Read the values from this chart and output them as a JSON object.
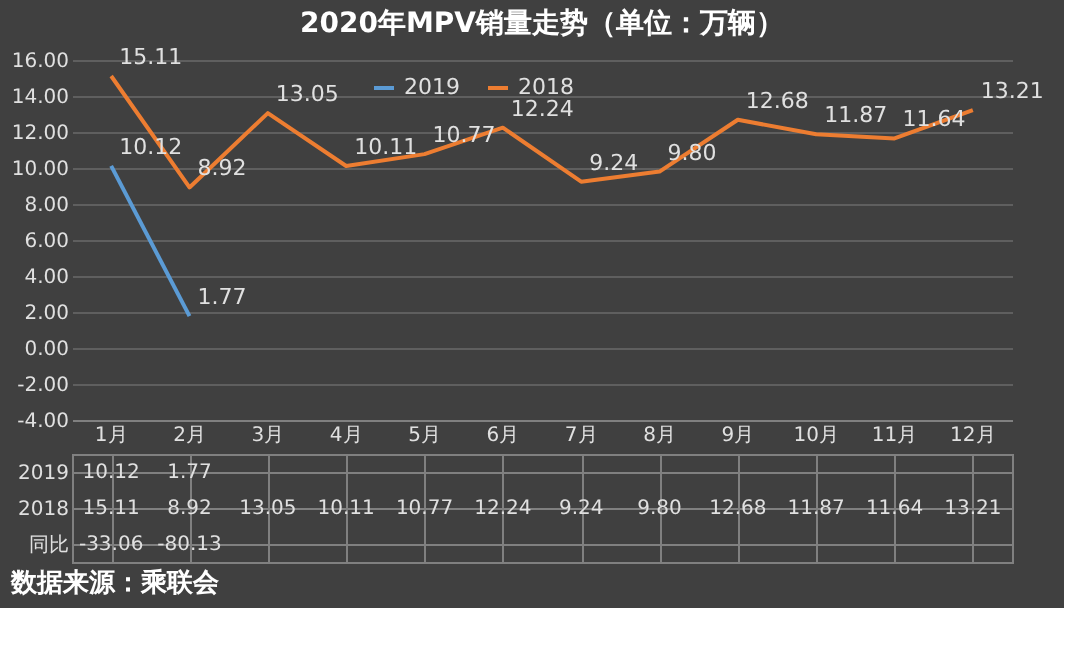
{
  "chart_data": {
    "type": "line",
    "title": "2020年MPV销量走势（单位：万辆）",
    "categories": [
      "1月",
      "2月",
      "3月",
      "4月",
      "5月",
      "6月",
      "7月",
      "8月",
      "9月",
      "10月",
      "11月",
      "12月"
    ],
    "series": [
      {
        "name": "2019",
        "color": "#5b9bd5",
        "values": [
          10.12,
          1.77,
          null,
          null,
          null,
          null,
          null,
          null,
          null,
          null,
          null,
          null
        ],
        "value_labels": [
          "10.12",
          "1.77",
          null,
          null,
          null,
          null,
          null,
          null,
          null,
          null,
          null,
          null
        ]
      },
      {
        "name": "2018",
        "color": "#ed7d31",
        "values": [
          15.11,
          8.92,
          13.05,
          10.11,
          10.77,
          12.24,
          9.24,
          9.8,
          12.68,
          11.87,
          11.64,
          13.21
        ],
        "value_labels": [
          "15.11",
          "8.92",
          "13.05",
          "10.11",
          "10.77",
          "12.24",
          "9.24",
          "9.80",
          "12.68",
          "11.87",
          "11.64",
          "13.21"
        ]
      }
    ],
    "ylim": [
      -4,
      16
    ],
    "yticks": [
      {
        "value": -4,
        "label": "-4.00"
      },
      {
        "value": -2,
        "label": "-2.00"
      },
      {
        "value": 0,
        "label": "0.00"
      },
      {
        "value": 2,
        "label": "2.00"
      },
      {
        "value": 4,
        "label": "4.00"
      },
      {
        "value": 6,
        "label": "6.00"
      },
      {
        "value": 8,
        "label": "8.00"
      },
      {
        "value": 10,
        "label": "10.00"
      },
      {
        "value": 12,
        "label": "12.00"
      },
      {
        "value": 14,
        "label": "14.00"
      },
      {
        "value": 16,
        "label": "16.00"
      }
    ],
    "grid": "y",
    "legend": "top",
    "annotations": [
      "同比",
      "-33.06",
      "-80.13",
      "数据来源：乘联会"
    ]
  }
}
